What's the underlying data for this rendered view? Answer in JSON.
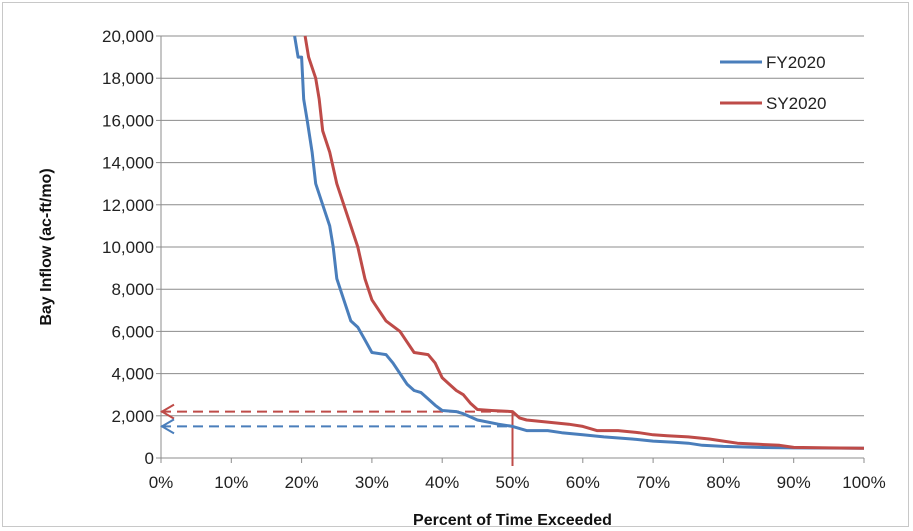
{
  "chart_data": {
    "type": "line",
    "xlabel": "Percent of Time Exceeded",
    "ylabel": "Bay Inflow (ac-ft/mo)",
    "xlim": [
      0,
      100
    ],
    "ylim": [
      0,
      20000
    ],
    "x_ticks": [
      "0%",
      "10%",
      "20%",
      "30%",
      "40%",
      "50%",
      "60%",
      "70%",
      "80%",
      "90%",
      "100%"
    ],
    "y_ticks": [
      "0",
      "2,000",
      "4,000",
      "6,000",
      "8,000",
      "10,000",
      "12,000",
      "14,000",
      "16,000",
      "18,000",
      "20,000"
    ],
    "grid": "horizontal",
    "legend_position": "top-right",
    "series": [
      {
        "name": "FY2020",
        "color": "#4a7ebb",
        "points": [
          [
            19,
            20000
          ],
          [
            19.5,
            19000
          ],
          [
            20,
            19000
          ],
          [
            20.3,
            17000
          ],
          [
            20.8,
            16000
          ],
          [
            21.5,
            14500
          ],
          [
            22,
            13000
          ],
          [
            23,
            12000
          ],
          [
            24,
            11000
          ],
          [
            24.5,
            10000
          ],
          [
            25,
            8500
          ],
          [
            26,
            7500
          ],
          [
            27,
            6500
          ],
          [
            28,
            6200
          ],
          [
            29,
            5600
          ],
          [
            30,
            5000
          ],
          [
            32,
            4900
          ],
          [
            33,
            4500
          ],
          [
            34,
            4000
          ],
          [
            35,
            3500
          ],
          [
            36,
            3200
          ],
          [
            37,
            3100
          ],
          [
            38,
            2800
          ],
          [
            39,
            2500
          ],
          [
            40,
            2250
          ],
          [
            42,
            2200
          ],
          [
            43,
            2100
          ],
          [
            45,
            1800
          ],
          [
            48,
            1600
          ],
          [
            50,
            1500
          ],
          [
            52,
            1300
          ],
          [
            55,
            1300
          ],
          [
            57,
            1200
          ],
          [
            60,
            1100
          ],
          [
            63,
            1000
          ],
          [
            67,
            900
          ],
          [
            70,
            800
          ],
          [
            73,
            750
          ],
          [
            75,
            700
          ],
          [
            77,
            600
          ],
          [
            80,
            550
          ],
          [
            85,
            500
          ],
          [
            90,
            480
          ],
          [
            100,
            460
          ]
        ]
      },
      {
        "name": "SY2020",
        "color": "#be4b48",
        "points": [
          [
            20.5,
            20000
          ],
          [
            21,
            19000
          ],
          [
            22,
            18000
          ],
          [
            22.5,
            17000
          ],
          [
            23,
            15500
          ],
          [
            24,
            14500
          ],
          [
            25,
            13000
          ],
          [
            26,
            12000
          ],
          [
            27,
            11000
          ],
          [
            28,
            10000
          ],
          [
            29,
            8500
          ],
          [
            30,
            7500
          ],
          [
            31,
            7000
          ],
          [
            32,
            6500
          ],
          [
            34,
            6000
          ],
          [
            35,
            5500
          ],
          [
            36,
            5000
          ],
          [
            38,
            4900
          ],
          [
            39,
            4500
          ],
          [
            40,
            3800
          ],
          [
            41,
            3500
          ],
          [
            42,
            3200
          ],
          [
            43,
            3000
          ],
          [
            44,
            2600
          ],
          [
            45,
            2300
          ],
          [
            47,
            2250
          ],
          [
            50,
            2200
          ],
          [
            51,
            1900
          ],
          [
            52,
            1800
          ],
          [
            55,
            1700
          ],
          [
            58,
            1600
          ],
          [
            60,
            1500
          ],
          [
            62,
            1300
          ],
          [
            65,
            1300
          ],
          [
            68,
            1200
          ],
          [
            70,
            1100
          ],
          [
            72,
            1050
          ],
          [
            75,
            1000
          ],
          [
            78,
            900
          ],
          [
            80,
            800
          ],
          [
            82,
            700
          ],
          [
            85,
            650
          ],
          [
            88,
            600
          ],
          [
            90,
            500
          ],
          [
            95,
            480
          ],
          [
            100,
            460
          ]
        ]
      }
    ],
    "reference_lines": [
      {
        "color": "#be4b48",
        "x": 50,
        "y": 2200
      },
      {
        "color": "#4a7ebb",
        "x": 50,
        "y": 1500
      }
    ]
  }
}
